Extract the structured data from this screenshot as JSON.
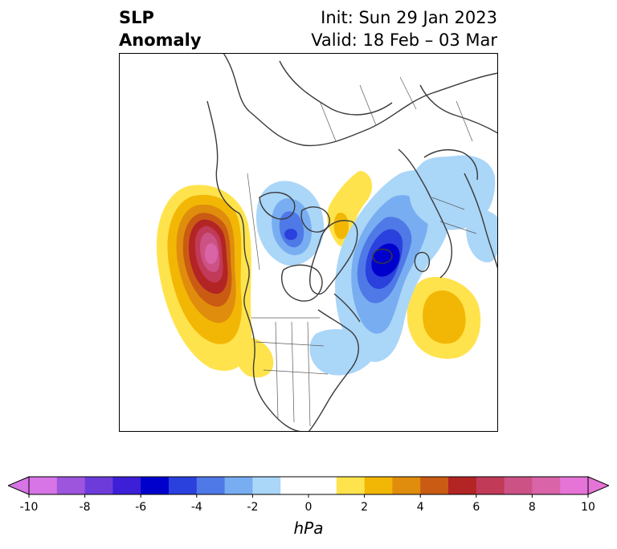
{
  "title": {
    "left_line1": "SLP",
    "left_line2": "Anomaly",
    "right_line1": "Init: Sun 29 Jan 2023",
    "right_line2": "Valid: 18 Feb – 03 Mar"
  },
  "colorbar": {
    "units": "hPa",
    "extend": "both",
    "levels": [
      -10,
      -9,
      -8,
      -7,
      -6,
      -5,
      -4,
      -3,
      -2,
      -1,
      1,
      2,
      3,
      4,
      5,
      6,
      7,
      8,
      9,
      10
    ],
    "colors": [
      "#d774e6",
      "#9e55dd",
      "#6e3bdb",
      "#3c1fd6",
      "#0000cc",
      "#2a41dd",
      "#4f79e6",
      "#78aef1",
      "#aad6f8",
      "#ffffff",
      "#ffe34d",
      "#f2b705",
      "#e08d0d",
      "#ca5b13",
      "#b32424",
      "#c13a58",
      "#cc5286",
      "#d964a8",
      "#e574d6"
    ],
    "ticks": [
      {
        "value": -10,
        "label": "-10"
      },
      {
        "value": -8,
        "label": "-8"
      },
      {
        "value": -6,
        "label": "-6"
      },
      {
        "value": -4,
        "label": "-4"
      },
      {
        "value": -2,
        "label": "-2"
      },
      {
        "value": 0,
        "label": "0"
      },
      {
        "value": 2,
        "label": "2"
      },
      {
        "value": 4,
        "label": "4"
      },
      {
        "value": 6,
        "label": "6"
      },
      {
        "value": 8,
        "label": "8"
      },
      {
        "value": 10,
        "label": "10"
      }
    ]
  },
  "map": {
    "field": "Sea level pressure anomaly",
    "features": [
      {
        "type": "high",
        "region": "Gulf of Alaska / NE Pacific",
        "peak_hpa": 9
      },
      {
        "type": "high",
        "region": "Western US",
        "peak_hpa": 1
      },
      {
        "type": "high",
        "region": "Central North Atlantic",
        "peak_hpa": 3
      },
      {
        "type": "high",
        "region": "Greenland Sea",
        "peak_hpa": 2
      },
      {
        "type": "low",
        "region": "Canadian Arctic Archipelago",
        "peak_hpa": -5
      },
      {
        "type": "low",
        "region": "NW Atlantic / Labrador Sea",
        "peak_hpa": -6
      },
      {
        "type": "low",
        "region": "Scandinavia / Northern Europe",
        "peak_hpa": -2
      }
    ]
  }
}
